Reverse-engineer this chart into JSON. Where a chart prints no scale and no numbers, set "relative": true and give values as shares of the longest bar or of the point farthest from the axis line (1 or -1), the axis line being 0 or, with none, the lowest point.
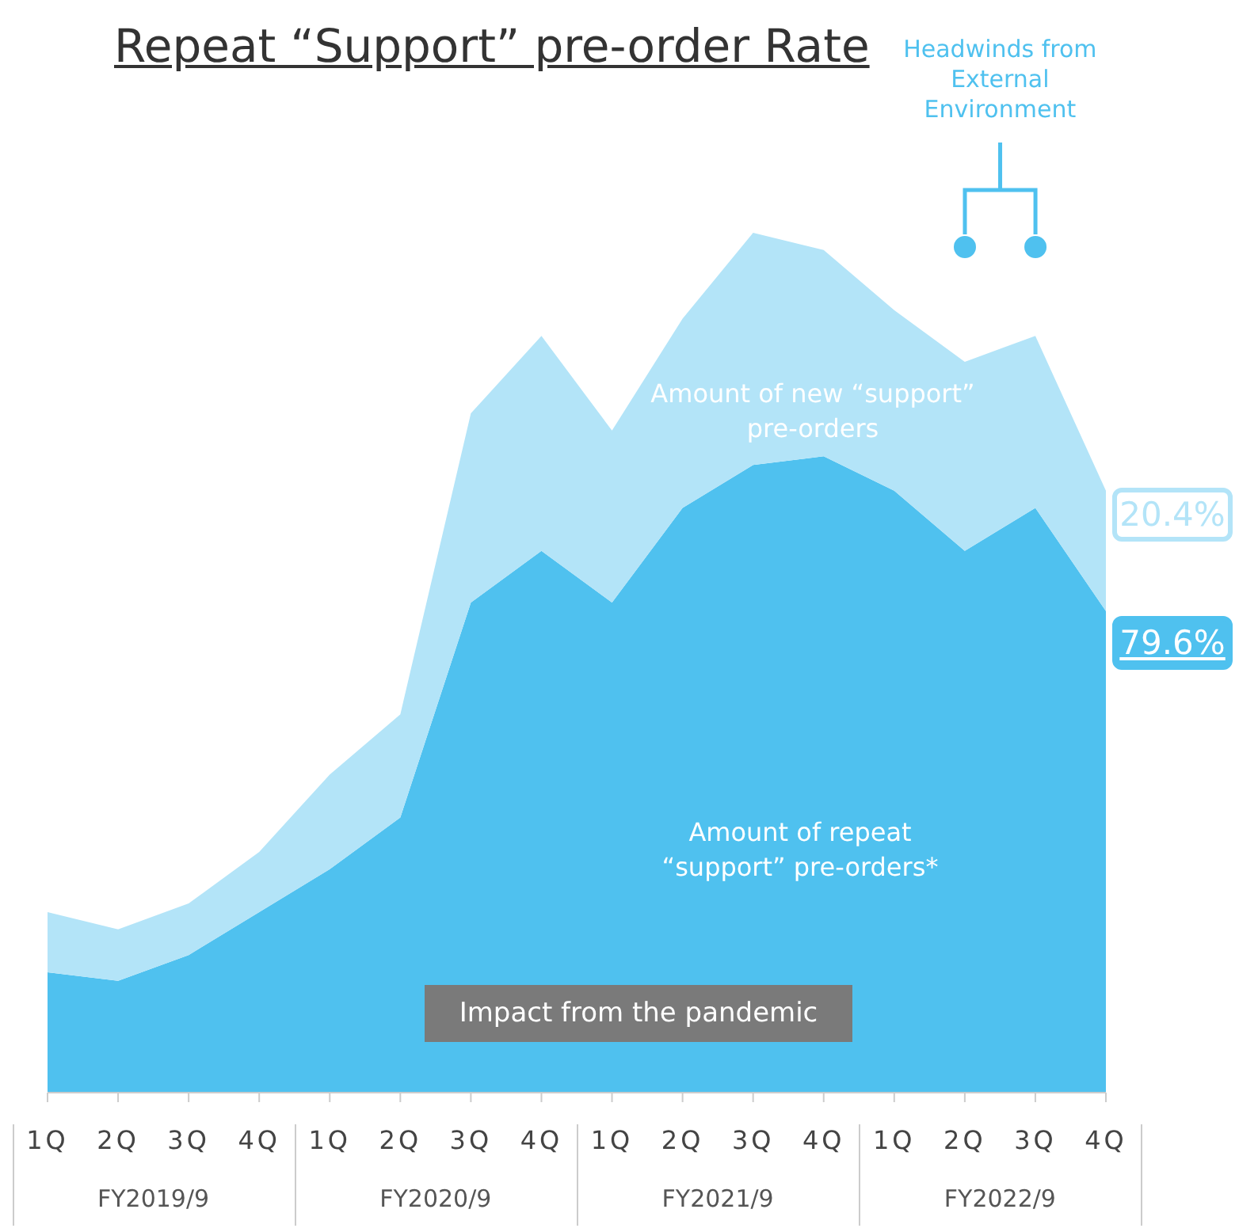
{
  "chart_data": {
    "type": "area",
    "title": "Repeat “Support” pre-order Rate",
    "relative": true,
    "stacked": true,
    "categories": [
      "1Q",
      "2Q",
      "3Q",
      "4Q",
      "1Q",
      "2Q",
      "3Q",
      "4Q",
      "1Q",
      "2Q",
      "3Q",
      "4Q",
      "1Q",
      "2Q",
      "3Q",
      "4Q"
    ],
    "series": [
      {
        "name": "Amount of repeat “support” pre-orders*",
        "color": "#4fc1ef",
        "values": [
          0.14,
          0.13,
          0.16,
          0.21,
          0.26,
          0.32,
          0.57,
          0.63,
          0.57,
          0.68,
          0.73,
          0.74,
          0.7,
          0.63,
          0.68,
          0.56
        ]
      },
      {
        "name": "Amount of new “support” pre-orders",
        "color": "#b3e4f8",
        "values": [
          0.07,
          0.06,
          0.06,
          0.07,
          0.11,
          0.12,
          0.22,
          0.25,
          0.2,
          0.22,
          0.27,
          0.24,
          0.21,
          0.22,
          0.2,
          0.14
        ]
      }
    ],
    "annotations": [
      "Headwinds from External Environment",
      "Impact from the pandemic",
      "79.6%",
      "20.4%",
      "FY2019/9",
      "FY2020/9",
      "FY2021/9",
      "FY2022/9"
    ]
  }
}
